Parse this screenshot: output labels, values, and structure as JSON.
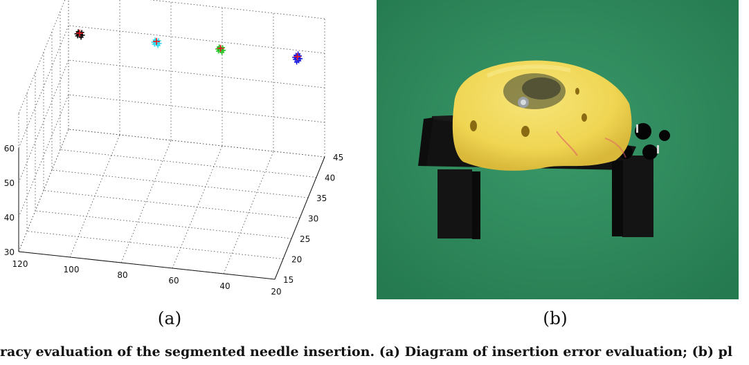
{
  "figure": {
    "panel_a_label": "(a)",
    "panel_b_label": "(b)",
    "caption": "racy evaluation of the segmented needle insertion. (a) Diagram of insertion error evaluation; (b) pl",
    "photo_description_colors": {
      "background": "#2f8a5c",
      "phantom": "#f2dc5a",
      "stand": "#151515"
    }
  },
  "chart_data": {
    "type": "scatter",
    "dimensions": 3,
    "title": "",
    "xlabel": "",
    "ylabel": "",
    "zlabel": "",
    "axis_a": {
      "ticks": [
        "120",
        "100",
        "80",
        "60",
        "40",
        "20"
      ],
      "range": [
        20,
        120
      ]
    },
    "axis_b": {
      "ticks": [
        "15",
        "20",
        "25",
        "30",
        "35",
        "40",
        "45"
      ],
      "range": [
        15,
        45
      ]
    },
    "axis_c": {
      "ticks": [
        "30",
        "40",
        "50",
        "60"
      ],
      "range": [
        30,
        60
      ]
    },
    "grid": true,
    "marker": "+",
    "clusters": [
      {
        "color": "#000000",
        "target_color": "#e8151b",
        "a": 115,
        "b": 44,
        "c": 59
      },
      {
        "color": "#28d7f0",
        "target_color": "#e8151b",
        "a": 85,
        "b": 44,
        "c": 59
      },
      {
        "color": "#1fc21f",
        "target_color": "#e8151b",
        "a": 60,
        "b": 44,
        "c": 59
      },
      {
        "color": "#1515e0",
        "target_color": "#e8151b",
        "a": 30,
        "b": 44,
        "c": 59
      }
    ]
  }
}
